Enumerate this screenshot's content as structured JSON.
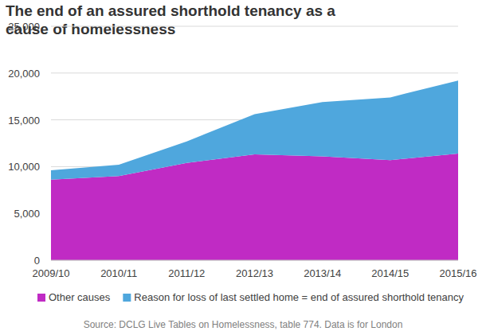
{
  "chart_data": {
    "type": "area",
    "title": "The end of an assured shorthold tenancy as a cause of homelessness",
    "source": "Source: DCLG Live Tables on Homelessness, table 774. Data is for London",
    "categories": [
      "2009/10",
      "2010/11",
      "2011/12",
      "2012/13",
      "2013/14",
      "2014/15",
      "2015/16"
    ],
    "series": [
      {
        "name": "Other causes",
        "color": "#c02bc4",
        "values": [
          8600,
          9000,
          10400,
          11300,
          11100,
          10700,
          11400
        ]
      },
      {
        "name": "Reason for loss of last settled home = end of assured shorthold tenancy",
        "color": "#4fa7dd",
        "values": [
          1000,
          1200,
          2300,
          4300,
          5800,
          6700,
          7800
        ]
      }
    ],
    "stacked": true,
    "ylim": [
      0,
      25000
    ],
    "yticks": [
      0,
      {
        "value": 5000,
        "label": "5,000"
      },
      {
        "value": 10000,
        "label": "10,000"
      },
      {
        "value": 15000,
        "label": "15,000"
      },
      {
        "value": 20000,
        "label": "20,000"
      },
      {
        "value": 25000,
        "label": "25,000"
      }
    ],
    "grid": true,
    "legend": "bottom"
  }
}
